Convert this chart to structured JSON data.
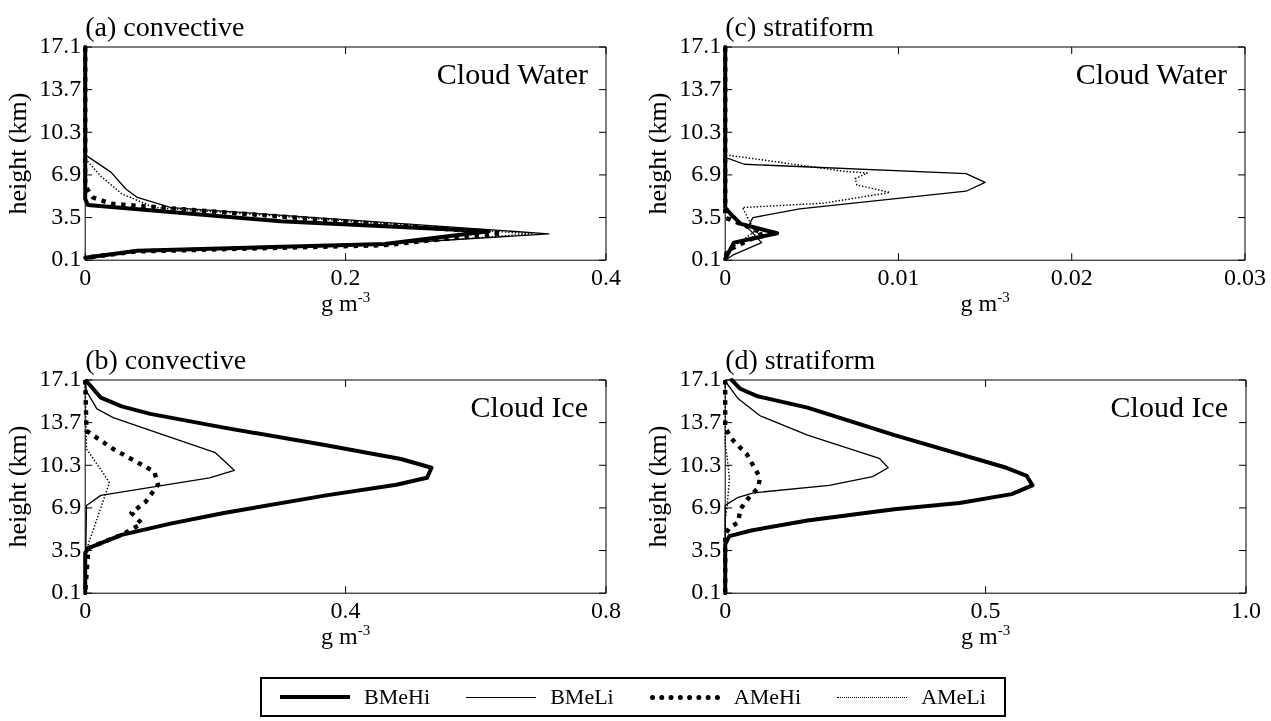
{
  "chart_data": [
    {
      "type": "line",
      "title": "(a) convective",
      "xlabel": "g m$^{-3}$",
      "ylabel": "height (km)",
      "annotations": [
        "Cloud Water"
      ],
      "xlim": [
        0,
        0.4
      ],
      "xticks": [
        0,
        0.2,
        0.4
      ],
      "ylim": [
        0.1,
        17.1
      ],
      "yticks": [
        0.1,
        3.5,
        6.9,
        10.3,
        13.7,
        17.1
      ],
      "grid": false,
      "legend": "bottom",
      "marker": "none",
      "series": [
        {
          "name": "BMeHi",
          "color": "#000000",
          "line_style": "solid",
          "x": [
            0,
            0,
            0.002,
            0.15,
            0.31,
            0.23,
            0.04,
            0
          ],
          "values": [
            17.1,
            5,
            4.5,
            3.2,
            2.4,
            1.4,
            0.85,
            0.3
          ]
        },
        {
          "name": "BMeLi",
          "color": "#000000",
          "line_style": "solid",
          "x": [
            0,
            0,
            0.02,
            0.031,
            0.04,
            0.066,
            0.356,
            0.23,
            0.037,
            0
          ],
          "values": [
            17.1,
            8.5,
            7.1,
            5.8,
            5.1,
            4.3,
            2.2,
            1.4,
            0.8,
            0.3
          ]
        },
        {
          "name": "AMeHi",
          "color": "#000000",
          "line_style": "dotted",
          "x": [
            0,
            0,
            0.006,
            0.02,
            0.32,
            0.23,
            0.04,
            0
          ],
          "values": [
            17.1,
            6,
            5.1,
            4.6,
            2.25,
            1.3,
            0.8,
            0.3
          ]
        },
        {
          "name": "AMeLi",
          "color": "#000000",
          "line_style": "dotted",
          "x": [
            0,
            0,
            0.012,
            0.028,
            0.053,
            0.343,
            0.23,
            0.04,
            0
          ],
          "values": [
            17.1,
            8.2,
            6.8,
            5.4,
            4.3,
            2.2,
            1.35,
            0.8,
            0.3
          ]
        }
      ]
    },
    {
      "type": "line",
      "title": "(c) stratiform",
      "xlabel": "g m$^{-3}$",
      "ylabel": "height (km)",
      "annotations": [
        "Cloud Water"
      ],
      "xlim": [
        0,
        0.03
      ],
      "xticks": [
        0,
        0.01,
        0.02,
        0.03
      ],
      "ylim": [
        0.1,
        17.1
      ],
      "yticks": [
        0.1,
        3.5,
        6.9,
        10.3,
        13.7,
        17.1
      ],
      "grid": false,
      "marker": "none",
      "series": [
        {
          "color": "#000000",
          "line_style": "solid",
          "x": [
            0,
            0,
            0.0003,
            0.0009,
            0.003,
            0.0005,
            0
          ],
          "values": [
            17.1,
            4.3,
            3.8,
            3,
            2.25,
            1.5,
            0.2
          ]
        },
        {
          "color": "#000000",
          "line_style": "solid",
          "x": [
            0,
            0,
            0.0011,
            0.0139,
            0.015,
            0.0139,
            0.0043,
            0.0016,
            0.0013,
            0.0021,
            0.0005,
            0
          ],
          "values": [
            17.1,
            8.3,
            7.75,
            7,
            6.3,
            5.6,
            4.2,
            3.5,
            2.7,
            1.5,
            0.55,
            0.1
          ]
        },
        {
          "color": "#000000",
          "line_style": "dotted",
          "x": [
            0,
            0,
            0.0022,
            0.0001,
            0
          ],
          "values": [
            17.1,
            3.5,
            2.25,
            0.85,
            0.1
          ]
        },
        {
          "color": "#000000",
          "line_style": "dotted",
          "x": [
            0,
            0,
            0.0011,
            0.0068,
            0.0082,
            0.0075,
            0.0076,
            0.0095,
            0.0057,
            0.001,
            0.0017,
            0
          ],
          "values": [
            17.1,
            8.5,
            8.3,
            7.2,
            7.05,
            6.6,
            6.1,
            5.5,
            4.65,
            4.3,
            2.4,
            0.7
          ]
        }
      ]
    },
    {
      "type": "line",
      "title": "(b) convective",
      "xlabel": "g m$^{-3}$",
      "ylabel": "height (km)",
      "annotations": [
        "Cloud Ice"
      ],
      "xlim": [
        0,
        0.8
      ],
      "xticks": [
        0,
        0.4,
        0.8
      ],
      "ylim": [
        0.1,
        17.1
      ],
      "yticks": [
        0.1,
        3.5,
        6.9,
        10.3,
        13.7,
        17.1
      ],
      "grid": false,
      "marker": "none",
      "series": [
        {
          "color": "#000000",
          "line_style": "solid",
          "x": [
            0.002,
            0.024,
            0.056,
            0.1,
            0.213,
            0.37,
            0.485,
            0.532,
            0.525,
            0.478,
            0.37,
            0.213,
            0.131,
            0.056,
            0.005,
            0,
            0
          ],
          "values": [
            17,
            15.7,
            15,
            14.4,
            13.3,
            11.9,
            10.8,
            10.1,
            9.3,
            8.75,
            7.9,
            6.5,
            5.65,
            4.75,
            3.7,
            3.3,
            0.1
          ]
        },
        {
          "color": "#000000",
          "line_style": "solid",
          "x": [
            0,
            0.002,
            0.018,
            0.043,
            0.119,
            0.2,
            0.229,
            0.191,
            0.024,
            0.002,
            0
          ],
          "values": [
            17.1,
            16.2,
            14.8,
            14.1,
            12.75,
            11.3,
            9.9,
            9.3,
            7.9,
            7.1,
            0.1
          ]
        },
        {
          "color": "#000000",
          "line_style": "dotted",
          "x": [
            0,
            0.002,
            0.043,
            0.106,
            0.112,
            0.093,
            0.071,
            0.087,
            0.056,
            0.005,
            0
          ],
          "values": [
            17.1,
            13.05,
            11.6,
            9.8,
            8.75,
            7.4,
            6.5,
            5.65,
            4.75,
            3.7,
            0.1
          ]
        },
        {
          "color": "#000000",
          "line_style": "dotted",
          "x": [
            0,
            0.002,
            0.03,
            0.037,
            0.018,
            0.008,
            0.002,
            0
          ],
          "values": [
            17.1,
            11.6,
            9.5,
            8.9,
            6,
            4.5,
            3.6,
            0.1
          ]
        }
      ]
    },
    {
      "type": "line",
      "title": "(d) stratiform",
      "xlabel": "g m$^{-3}$",
      "ylabel": "height (km)",
      "annotations": [
        "Cloud Ice"
      ],
      "xlim": [
        0,
        1
      ],
      "xticks": [
        0,
        0.5,
        {
          "value": 1,
          "label": "1.0"
        }
      ],
      "ylim": [
        0.1,
        17.1
      ],
      "yticks": [
        0.1,
        3.5,
        6.9,
        10.3,
        13.7,
        17.1
      ],
      "grid": false,
      "marker": "none",
      "series": [
        {
          "color": "#000000",
          "line_style": "solid",
          "x": [
            0.0125,
            0.029,
            0.0625,
            0.158,
            0.325,
            0.54,
            0.579,
            0.59,
            0.55,
            0.45,
            0.325,
            0.158,
            0.05,
            0.008,
            0,
            0
          ],
          "values": [
            17.1,
            16.4,
            15.8,
            14.9,
            12.7,
            10.1,
            9.45,
            8.7,
            8,
            7.3,
            6.8,
            5.9,
            5.1,
            4.65,
            4,
            0.1
          ]
        },
        {
          "color": "#000000",
          "line_style": "solid",
          "x": [
            0.002,
            0.025,
            0.067,
            0.158,
            0.296,
            0.313,
            0.283,
            0.2,
            0.054,
            0.025,
            0,
            0
          ],
          "values": [
            16.9,
            15.6,
            14.25,
            12.7,
            10.85,
            10.1,
            9.4,
            8.7,
            8.1,
            7.75,
            7.1,
            0.1
          ]
        },
        {
          "color": "#000000",
          "line_style": "dotted",
          "x": [
            0,
            0,
            0.0125,
            0.042,
            0.067,
            0.063,
            0.046,
            0.029,
            0.025,
            0.008,
            0,
            0
          ],
          "values": [
            17.1,
            13.3,
            12.4,
            11.15,
            9.3,
            8.5,
            7.75,
            6.8,
            5.75,
            5.3,
            4.8,
            0.1
          ]
        },
        {
          "color": "#000000",
          "line_style": "dotted",
          "x": [
            0,
            0,
            0.004,
            0.008,
            0.004,
            0,
            0
          ],
          "values": [
            17.1,
            12,
            10.85,
            9.3,
            7.1,
            6,
            0.1
          ]
        }
      ]
    }
  ]
}
